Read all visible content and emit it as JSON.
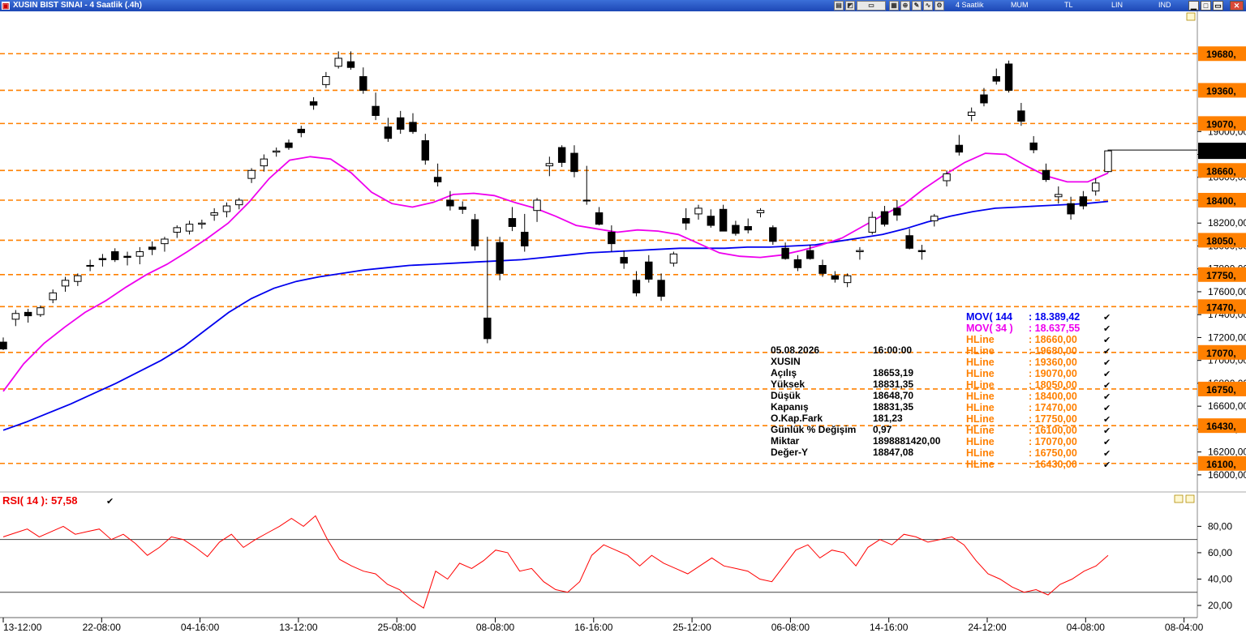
{
  "window": {
    "title": "XUSIN BIST SINAI - 4 Saatlik (.4h)",
    "period": "4 Saatlik",
    "candle_type": "MUM",
    "currency": "TL",
    "scale": "LIN",
    "indicator_mode": "IND"
  },
  "info_panel": {
    "date": "05.08.2026",
    "time": "16:00:00",
    "symbol": "XUSIN",
    "rows": [
      {
        "label": "Açılış",
        "value": "18653,19"
      },
      {
        "label": "Yüksek",
        "value": "18831,35"
      },
      {
        "label": "Düşük",
        "value": "18648,70"
      },
      {
        "label": "Kapanış",
        "value": "18831,35"
      },
      {
        "label": "O.Kap.Fark",
        "value": "181,23"
      },
      {
        "label": "Günlük % Değişim",
        "value": "0,97"
      },
      {
        "label": "Miktar",
        "value": "1898881420,00"
      },
      {
        "label": "Değer-Y",
        "value": "18847,08"
      }
    ]
  },
  "legend": [
    {
      "name": "MOV( 144 ",
      "value": ": 18.389,42",
      "color": "#0000ee"
    },
    {
      "name": "MOV( 34 )",
      "value": ": 18.637,55",
      "color": "#ee00ee"
    },
    {
      "name": "HLine",
      "value": ": 18660,00",
      "color": "#ff8000"
    },
    {
      "name": "HLine",
      "value": ": 19680,00",
      "color": "#ff8000"
    },
    {
      "name": "HLine",
      "value": ": 19360,00",
      "color": "#ff8000"
    },
    {
      "name": "HLine",
      "value": ": 19070,00",
      "color": "#ff8000"
    },
    {
      "name": "HLine",
      "value": ": 18050,00",
      "color": "#ff8000"
    },
    {
      "name": "HLine",
      "value": ": 18400,00",
      "color": "#ff8000"
    },
    {
      "name": "HLine",
      "value": ": 17470,00",
      "color": "#ff8000"
    },
    {
      "name": "HLine",
      "value": ": 17750,00",
      "color": "#ff8000"
    },
    {
      "name": "HLine",
      "value": ": 16100,00",
      "color": "#ff8000"
    },
    {
      "name": "HLine",
      "value": ": 17070,00",
      "color": "#ff8000"
    },
    {
      "name": "HLine",
      "value": ": 16750,00",
      "color": "#ff8000"
    },
    {
      "name": "HLine",
      "value": ": 16430,00",
      "color": "#ff8000"
    }
  ],
  "rsi_label": "RSI( 14 ): 57,58",
  "colors": {
    "hline": "#ff8000",
    "ma144": "#0000ee",
    "ma34": "#ee00ee",
    "rsi": "#ff0000",
    "candle": "#000000"
  },
  "chart_data": [
    {
      "type": "candlestick",
      "ylim": [
        15900,
        20050
      ],
      "y_ticks": [
        "16000,00",
        "16200,00",
        "16400,00",
        "16600,00",
        "16800,00",
        "17000,00",
        "17200,00",
        "17400,00",
        "17600,00",
        "17800,00",
        "18000,00",
        "18200,00",
        "18400,00",
        "18600,00",
        "18800,00",
        "19000,00"
      ],
      "x_ticks": [
        "13-12:00",
        "22-08:00",
        "04-16:00",
        "13-12:00",
        "25-08:00",
        "08-08:00",
        "16-16:00",
        "25-12:00",
        "06-08:00",
        "14-16:00",
        "24-12:00",
        "04-08:00",
        "08-04:00"
      ],
      "hlines": [
        {
          "value": 19680,
          "label": "19680,"
        },
        {
          "value": 19360,
          "label": "19360,"
        },
        {
          "value": 19070,
          "label": "19070,"
        },
        {
          "value": 18660,
          "label": "18660,"
        },
        {
          "value": 18400,
          "label": "18400,"
        },
        {
          "value": 18050,
          "label": "18050,"
        },
        {
          "value": 17750,
          "label": "17750,"
        },
        {
          "value": 17470,
          "label": "17470,"
        },
        {
          "value": 17070,
          "label": "17070,"
        },
        {
          "value": 16750,
          "label": "16750,"
        },
        {
          "value": 16430,
          "label": "16430,"
        },
        {
          "value": 16100,
          "label": "16100,"
        }
      ],
      "last_price": {
        "value": 18831,
        "label": "18831,"
      },
      "candles": [
        [
          17160,
          17200,
          17090,
          17100
        ],
        [
          17360,
          17440,
          17300,
          17410
        ],
        [
          17420,
          17450,
          17330,
          17390
        ],
        [
          17400,
          17480,
          17380,
          17460
        ],
        [
          17530,
          17620,
          17500,
          17590
        ],
        [
          17650,
          17730,
          17600,
          17700
        ],
        [
          17690,
          17760,
          17650,
          17740
        ],
        [
          17830,
          17880,
          17780,
          17830
        ],
        [
          17890,
          17930,
          17820,
          17880
        ],
        [
          17950,
          17980,
          17860,
          17880
        ],
        [
          17910,
          17950,
          17830,
          17900
        ],
        [
          17910,
          17990,
          17840,
          17950
        ],
        [
          17990,
          18040,
          17920,
          17970
        ],
        [
          18020,
          18080,
          17950,
          18060
        ],
        [
          18120,
          18180,
          18070,
          18160
        ],
        [
          18130,
          18220,
          18100,
          18190
        ],
        [
          18190,
          18230,
          18150,
          18200
        ],
        [
          18270,
          18330,
          18220,
          18290
        ],
        [
          18300,
          18380,
          18250,
          18350
        ],
        [
          18360,
          18420,
          18320,
          18400
        ],
        [
          18590,
          18680,
          18550,
          18660
        ],
        [
          18700,
          18800,
          18650,
          18760
        ],
        [
          18820,
          18860,
          18780,
          18830
        ],
        [
          18900,
          18930,
          18840,
          18860
        ],
        [
          19020,
          19050,
          18950,
          18990
        ],
        [
          19260,
          19300,
          19190,
          19230
        ],
        [
          19410,
          19520,
          19380,
          19480
        ],
        [
          19570,
          19700,
          19550,
          19640
        ],
        [
          19610,
          19700,
          19540,
          19560
        ],
        [
          19480,
          19560,
          19330,
          19360
        ],
        [
          19220,
          19340,
          19100,
          19140
        ],
        [
          19040,
          19120,
          18910,
          18940
        ],
        [
          19120,
          19180,
          18980,
          19020
        ],
        [
          19080,
          19160,
          18980,
          19000
        ],
        [
          18920,
          18980,
          18710,
          18750
        ],
        [
          18600,
          18720,
          18520,
          18560
        ],
        [
          18400,
          18480,
          18310,
          18350
        ],
        [
          18340,
          18390,
          18280,
          18320
        ],
        [
          18230,
          18280,
          17960,
          18000
        ],
        [
          17370,
          18080,
          17150,
          17190
        ],
        [
          18030,
          18080,
          17700,
          17760
        ],
        [
          18240,
          18340,
          18130,
          18170
        ],
        [
          18120,
          18280,
          17950,
          18000
        ],
        [
          18310,
          18420,
          18210,
          18400
        ],
        [
          18700,
          18780,
          18610,
          18720
        ],
        [
          18860,
          18880,
          18690,
          18730
        ],
        [
          18810,
          18880,
          18600,
          18650
        ],
        [
          18400,
          18700,
          18360,
          18400
        ],
        [
          18290,
          18340,
          18180,
          18190
        ],
        [
          18120,
          18180,
          17950,
          18020
        ],
        [
          17900,
          17960,
          17800,
          17850
        ],
        [
          17700,
          17780,
          17560,
          17590
        ],
        [
          17860,
          17920,
          17680,
          17710
        ],
        [
          17700,
          17760,
          17520,
          17560
        ],
        [
          17850,
          17950,
          17820,
          17930
        ],
        [
          18240,
          18330,
          18140,
          18200
        ],
        [
          18280,
          18360,
          18230,
          18330
        ],
        [
          18260,
          18320,
          18160,
          18180
        ],
        [
          18320,
          18360,
          18130,
          18130
        ],
        [
          18180,
          18220,
          18090,
          18110
        ],
        [
          18170,
          18240,
          18110,
          18140
        ],
        [
          18290,
          18330,
          18250,
          18310
        ],
        [
          18160,
          18180,
          18010,
          18040
        ],
        [
          17980,
          18030,
          17880,
          17890
        ],
        [
          17880,
          17920,
          17780,
          17810
        ],
        [
          17960,
          18010,
          17880,
          17890
        ],
        [
          17830,
          17880,
          17730,
          17760
        ],
        [
          17740,
          17780,
          17680,
          17710
        ],
        [
          17680,
          17760,
          17640,
          17740
        ],
        [
          17950,
          17990,
          17880,
          17960
        ],
        [
          18120,
          18300,
          18100,
          18250
        ],
        [
          18300,
          18350,
          18170,
          18190
        ],
        [
          18330,
          18400,
          18220,
          18270
        ],
        [
          18090,
          18150,
          17970,
          17980
        ],
        [
          17960,
          18010,
          17880,
          17950
        ],
        [
          18220,
          18280,
          18170,
          18260
        ],
        [
          18570,
          18660,
          18520,
          18630
        ],
        [
          18880,
          18970,
          18790,
          18820
        ],
        [
          19140,
          19210,
          19090,
          19170
        ],
        [
          19320,
          19380,
          19220,
          19250
        ],
        [
          19480,
          19550,
          19410,
          19440
        ],
        [
          19590,
          19620,
          19340,
          19360
        ],
        [
          19180,
          19250,
          19050,
          19090
        ],
        [
          18900,
          18960,
          18810,
          18840
        ],
        [
          18660,
          18720,
          18560,
          18580
        ],
        [
          18430,
          18520,
          18370,
          18450
        ],
        [
          18370,
          18430,
          18230,
          18280
        ],
        [
          18430,
          18480,
          18320,
          18350
        ],
        [
          18480,
          18590,
          18440,
          18550
        ],
        [
          18650,
          18831,
          18640,
          18831
        ]
      ],
      "ma34": [
        16730,
        16970,
        17150,
        17290,
        17420,
        17520,
        17640,
        17750,
        17840,
        17950,
        18070,
        18200,
        18380,
        18590,
        18750,
        18780,
        18760,
        18640,
        18470,
        18370,
        18340,
        18380,
        18450,
        18460,
        18440,
        18380,
        18330,
        18260,
        18180,
        18150,
        18120,
        18140,
        18130,
        18100,
        18020,
        17940,
        17910,
        17900,
        17920,
        17960,
        18010,
        18070,
        18170,
        18270,
        18360,
        18500,
        18620,
        18730,
        18810,
        18800,
        18700,
        18610,
        18560,
        18560,
        18637
      ],
      "ma144": [
        16390,
        16460,
        16540,
        16620,
        16710,
        16800,
        16900,
        17000,
        17120,
        17270,
        17420,
        17540,
        17630,
        17690,
        17730,
        17760,
        17790,
        17810,
        17830,
        17840,
        17850,
        17860,
        17870,
        17880,
        17900,
        17920,
        17940,
        17950,
        17960,
        17970,
        17980,
        17980,
        17980,
        17990,
        17990,
        18000,
        18010,
        18040,
        18070,
        18100,
        18150,
        18210,
        18260,
        18300,
        18330,
        18340,
        18350,
        18360,
        18370,
        18389
      ]
    },
    {
      "type": "line",
      "ylim": [
        12,
        95
      ],
      "y_ticks": [
        "20,00",
        "40,00",
        "60,00",
        "80,00"
      ],
      "levels": [
        30,
        70
      ],
      "rsi": [
        72,
        75,
        78,
        72,
        76,
        80,
        74,
        76,
        78,
        70,
        74,
        67,
        58,
        64,
        72,
        70,
        64,
        57,
        68,
        74,
        64,
        70,
        75,
        80,
        86,
        80,
        88,
        70,
        55,
        50,
        46,
        44,
        36,
        32,
        24,
        18,
        46,
        40,
        52,
        48,
        54,
        62,
        60,
        46,
        48,
        38,
        32,
        30,
        38,
        58,
        66,
        62,
        58,
        50,
        58,
        52,
        48,
        44,
        50,
        56,
        50,
        48,
        46,
        40,
        38,
        50,
        62,
        66,
        56,
        62,
        60,
        50,
        64,
        70,
        66,
        74,
        72,
        68,
        70,
        72,
        66,
        54,
        44,
        40,
        34,
        30,
        32,
        28,
        36,
        40,
        46,
        50,
        58
      ]
    }
  ]
}
